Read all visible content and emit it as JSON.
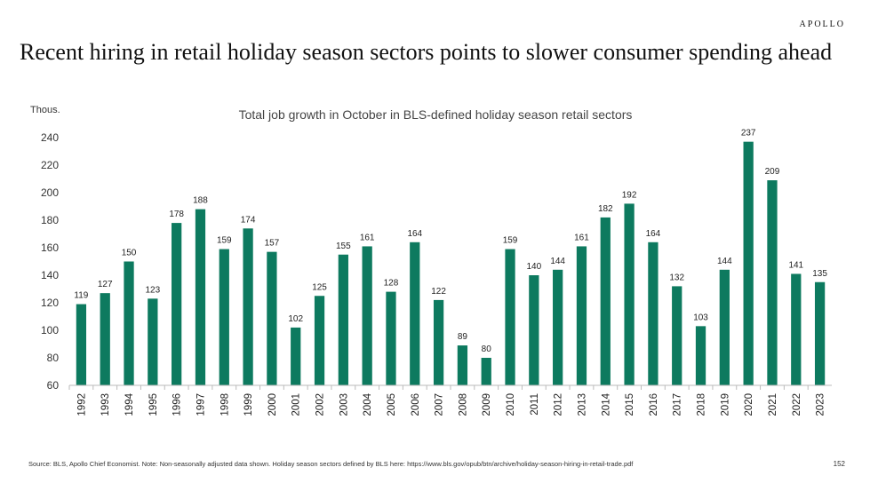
{
  "brand": "APOLLO",
  "headline": "Recent hiring in retail holiday season sectors points to slower consumer spending ahead",
  "source_note": "Source: BLS, Apollo Chief Economist. Note: Non-seasonally adjusted data shown. Holiday season sectors defined by BLS here: https://www.bls.gov/opub/btn/archive/holiday-season-hiring-in-retail-trade.pdf",
  "page_number": "152",
  "colors": {
    "bar": "#0d7a5f",
    "axis": "#bbbbbb",
    "text": "#333333"
  },
  "chart_data": {
    "type": "bar",
    "title": "Total job growth in October in BLS-defined holiday season retail sectors",
    "ylabel": "Thous.",
    "xlabel": "",
    "ylim": [
      60,
      240
    ],
    "yticks": [
      60,
      80,
      100,
      120,
      140,
      160,
      180,
      200,
      220,
      240
    ],
    "grid": false,
    "categories": [
      "1992",
      "1993",
      "1994",
      "1995",
      "1996",
      "1997",
      "1998",
      "1999",
      "2000",
      "2001",
      "2002",
      "2003",
      "2004",
      "2005",
      "2006",
      "2007",
      "2008",
      "2009",
      "2010",
      "2011",
      "2012",
      "2013",
      "2014",
      "2015",
      "2016",
      "2017",
      "2018",
      "2019",
      "2020",
      "2021",
      "2022",
      "2023"
    ],
    "values": [
      119,
      127,
      150,
      123,
      178,
      188,
      159,
      174,
      157,
      102,
      125,
      155,
      161,
      128,
      164,
      122,
      89,
      80,
      159,
      140,
      144,
      161,
      182,
      192,
      164,
      132,
      103,
      144,
      237,
      209,
      141,
      135
    ]
  }
}
